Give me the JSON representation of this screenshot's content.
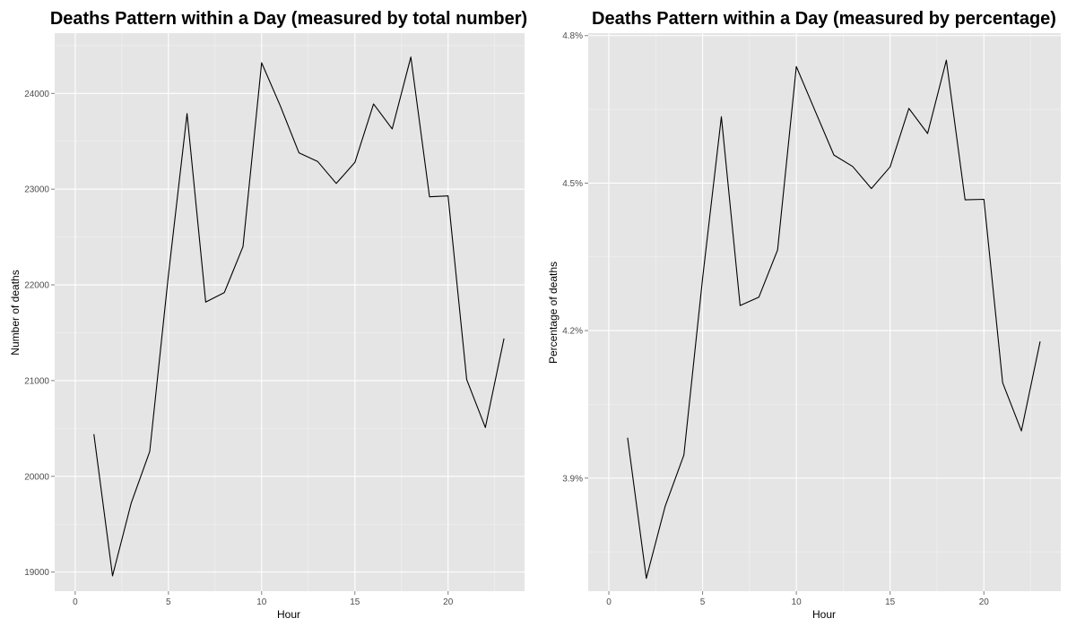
{
  "chart_data": [
    {
      "type": "line",
      "title": "Deaths Pattern within a Day (measured by total number)",
      "xlabel": "Hour",
      "ylabel": "Number of deaths",
      "x": [
        1,
        2,
        3,
        4,
        5,
        6,
        7,
        8,
        9,
        10,
        11,
        12,
        13,
        14,
        15,
        16,
        17,
        18,
        19,
        20,
        21,
        22,
        23
      ],
      "y": [
        20440,
        18960,
        19720,
        20260,
        22100,
        23790,
        21820,
        21920,
        22400,
        24320,
        23870,
        23380,
        23290,
        23060,
        23280,
        23890,
        23630,
        24380,
        22920,
        22930,
        21010,
        20510,
        21440
      ],
      "xlim": [
        -1.1,
        24.1
      ],
      "ylim": [
        18800,
        24630
      ],
      "x_ticks": [
        0,
        5,
        10,
        15,
        20
      ],
      "x_tick_labels": [
        "0",
        "5",
        "10",
        "15",
        "20"
      ],
      "y_ticks": [
        19000,
        20000,
        21000,
        22000,
        23000,
        24000
      ],
      "y_tick_labels": [
        "19000",
        "20000",
        "21000",
        "22000",
        "23000",
        "24000"
      ],
      "grid": true
    },
    {
      "type": "line",
      "title": "Deaths Pattern within a Day (measured by percentage)",
      "xlabel": "Hour",
      "ylabel": "Percentage of deaths",
      "x": [
        1,
        2,
        3,
        4,
        5,
        6,
        7,
        8,
        9,
        10,
        11,
        12,
        13,
        14,
        15,
        16,
        17,
        18,
        19,
        20,
        21,
        22,
        23
      ],
      "y": [
        3.982,
        3.696,
        3.842,
        3.947,
        4.307,
        4.635,
        4.251,
        4.268,
        4.364,
        4.737,
        4.647,
        4.557,
        4.534,
        4.489,
        4.533,
        4.652,
        4.601,
        4.75,
        4.466,
        4.467,
        4.094,
        3.996,
        4.178
      ],
      "xlim": [
        -1.1,
        24.1
      ],
      "ylim": [
        3.67,
        4.805
      ],
      "x_ticks": [
        0,
        5,
        10,
        15,
        20
      ],
      "x_tick_labels": [
        "0",
        "5",
        "10",
        "15",
        "20"
      ],
      "y_ticks": [
        3.9,
        4.2,
        4.5,
        4.8
      ],
      "y_tick_labels": [
        "3.9%",
        "4.2%",
        "4.5%",
        "4.8%"
      ],
      "grid": true
    }
  ]
}
